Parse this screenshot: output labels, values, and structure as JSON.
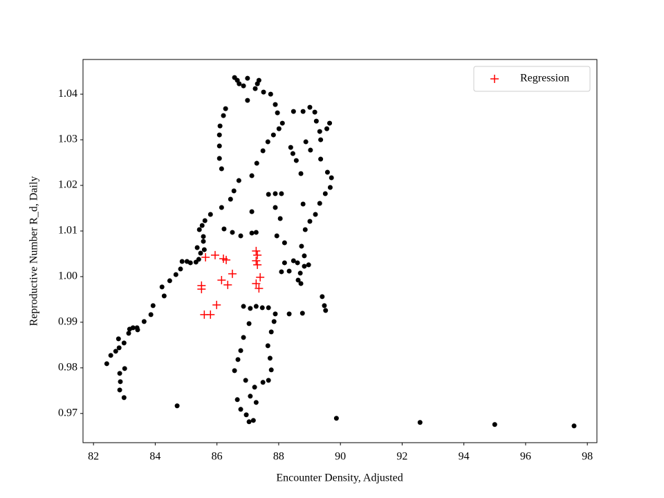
{
  "chart_data": {
    "type": "scatter",
    "xlabel": "Encounter Density, Adjusted",
    "ylabel": "Reproductive Number R_d, Daily",
    "xlim": [
      81.66,
      98.31
    ],
    "ylim": [
      0.9636,
      1.0476
    ],
    "xticks": [
      82,
      84,
      86,
      88,
      90,
      92,
      94,
      96,
      98
    ],
    "yticks": [
      0.97,
      0.98,
      0.99,
      {
        "value": 1,
        "label": "1.00"
      },
      1.01,
      1.02,
      1.03,
      1.04
    ],
    "legend": "upper right",
    "series": [
      {
        "color": "#000000",
        "marker": "dot",
        "x": [
          84.71,
          89.87,
          92.58,
          95.0,
          97.57,
          82.43,
          82.56,
          82.72,
          82.81,
          82.83,
          82.99,
          82.85,
          82.87,
          82.85,
          82.99,
          83.01,
          83.14,
          83.17,
          83.28,
          83.41,
          83.43,
          83.64,
          83.86,
          83.93,
          84.22,
          84.29,
          84.47,
          84.67,
          84.82,
          84.87,
          85.03,
          85.14,
          85.32,
          85.47,
          85.41,
          85.36,
          85.43,
          85.52,
          85.61,
          85.79,
          85.56,
          85.56,
          85.59,
          86.15,
          86.44,
          86.55,
          86.71,
          86.15,
          86.08,
          86.08,
          86.08,
          86.1,
          86.21,
          86.28,
          86.57,
          86.66,
          86.72,
          86.86,
          86.99,
          86.99,
          87.24,
          87.31,
          87.36,
          87.13,
          87.29,
          87.49,
          87.65,
          87.83,
          88.01,
          88.12,
          87.96,
          87.89,
          87.74,
          87.51,
          86.23,
          86.5,
          86.77,
          87.13,
          87.13,
          87.27,
          87.67,
          87.89,
          88.09,
          87.89,
          88.05,
          87.94,
          88.19,
          88.19,
          88.09,
          88.34,
          88.48,
          88.61,
          88.7,
          88.63,
          88.72,
          88.83,
          88.97,
          88.83,
          88.74,
          88.86,
          89.01,
          89.19,
          89.33,
          89.51,
          89.67,
          89.71,
          89.58,
          89.36,
          89.03,
          88.88,
          88.72,
          88.79,
          88.39,
          88.46,
          88.57,
          88.48,
          88.79,
          89.01,
          89.17,
          89.22,
          89.33,
          89.36,
          89.65,
          89.56,
          86.86,
          87.08,
          87.27,
          87.47,
          87.67,
          87.89,
          87.85,
          87.76,
          87.65,
          87.72,
          87.76,
          87.67,
          87.49,
          87.22,
          87.08,
          87.27,
          87.18,
          87.04,
          86.95,
          86.77,
          86.66,
          86.93,
          86.68,
          86.77,
          86.86,
          87.04,
          86.57,
          88.34,
          88.77,
          89.41,
          89.48,
          89.52
        ],
        "values": [
          0.97167,
          0.96894,
          0.96803,
          0.96758,
          0.96727,
          0.98091,
          0.98273,
          0.98364,
          0.98636,
          0.98439,
          0.98545,
          0.97879,
          0.97697,
          0.97515,
          0.97348,
          0.97985,
          0.98758,
          0.98848,
          0.98879,
          0.98879,
          0.98833,
          0.99015,
          0.99167,
          0.99364,
          0.99773,
          0.99576,
          0.99909,
          1.00045,
          1.00167,
          1.00333,
          1.00333,
          1.00303,
          1.00318,
          1.00515,
          1.00379,
          1.00636,
          1.0103,
          1.01121,
          1.01227,
          1.01364,
          1.00879,
          1.00773,
          1.00591,
          1.01515,
          1.01697,
          1.01879,
          1.02106,
          1.02364,
          1.02591,
          1.02864,
          1.03106,
          1.03303,
          1.0353,
          1.03682,
          1.04364,
          1.04303,
          1.04227,
          1.04182,
          1.04348,
          1.03864,
          1.04121,
          1.04227,
          1.04303,
          1.02212,
          1.02485,
          1.02758,
          1.02955,
          1.03106,
          1.03242,
          1.03364,
          1.03591,
          1.03773,
          1.04,
          1.04045,
          1.01045,
          1.0097,
          1.00894,
          1.01424,
          1.00955,
          1.0097,
          1.01803,
          1.01818,
          1.01818,
          1.01515,
          1.01273,
          1.00894,
          1.00742,
          1.00303,
          1.00106,
          1.00121,
          1.00348,
          1.00303,
          1.00076,
          0.99924,
          0.99848,
          1.00227,
          1.00258,
          1.00455,
          1.00667,
          1.0103,
          1.01212,
          1.01364,
          1.01606,
          1.01818,
          1.01955,
          1.02167,
          1.02288,
          1.02576,
          1.02773,
          1.02955,
          1.02258,
          1.01591,
          1.02833,
          1.02697,
          1.02545,
          1.03621,
          1.03621,
          1.03712,
          1.03606,
          1.03409,
          1.03182,
          1.03,
          1.03364,
          1.03242,
          0.99348,
          0.99303,
          0.99348,
          0.99318,
          0.99318,
          0.99182,
          0.99015,
          0.98788,
          0.98485,
          0.98212,
          0.97955,
          0.97727,
          0.97682,
          0.97576,
          0.97379,
          0.97242,
          0.96848,
          0.96818,
          0.9697,
          0.97091,
          0.97303,
          0.97727,
          0.98182,
          0.98379,
          0.98667,
          0.9897,
          0.97939,
          0.99182,
          0.99197,
          0.99561,
          0.99364,
          0.99258
        ]
      },
      {
        "name": "Regression",
        "color": "#ff0000",
        "marker": "plus",
        "x": [
          85.63,
          85.94,
          86.21,
          86.3,
          87.27,
          87.31,
          87.27,
          87.31,
          86.5,
          86.15,
          86.35,
          87.27,
          87.4,
          87.36,
          85.5,
          85.5,
          85.99,
          85.59,
          85.79
        ],
        "values": [
          1.00424,
          1.0047,
          1.00394,
          1.00364,
          1.00561,
          1.0047,
          1.00348,
          1.00258,
          1.00061,
          0.99924,
          0.99818,
          0.99848,
          0.99985,
          0.99742,
          0.99803,
          0.99727,
          0.99379,
          0.99167,
          0.99167
        ]
      }
    ]
  }
}
